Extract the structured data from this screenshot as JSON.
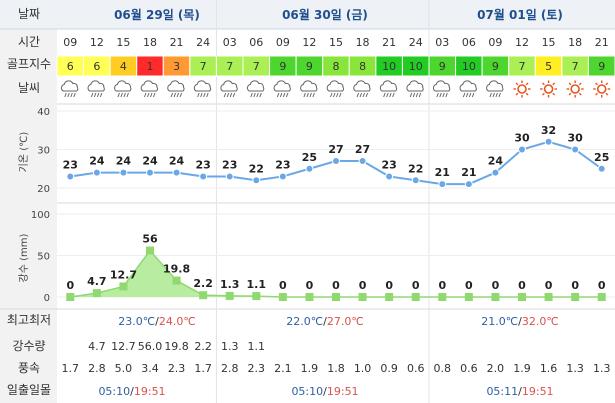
{
  "header": {
    "date_label": "날짜",
    "days": [
      "06월 29일 (목)",
      "06월 30일 (금)",
      "07월 01일 (토)"
    ]
  },
  "rows": {
    "time_label": "시간",
    "golf_label": "골프지수",
    "weather_label": "날씨",
    "minmax_label": "최고최저",
    "precip_label": "강수량",
    "wind_label": "풍속",
    "sun_label": "일출일몰"
  },
  "times": [
    "09",
    "12",
    "15",
    "18",
    "21",
    "24",
    "03",
    "06",
    "09",
    "12",
    "15",
    "18",
    "21",
    "24",
    "03",
    "06",
    "09",
    "12",
    "15",
    "18",
    "21"
  ],
  "golf_index": [
    6,
    6,
    4,
    1,
    3,
    7,
    7,
    7,
    9,
    9,
    8,
    8,
    10,
    10,
    9,
    10,
    9,
    7,
    5,
    7,
    9
  ],
  "golf_colors": {
    "1": "#ff2a2a",
    "3": "#ff9933",
    "4": "#ffcc22",
    "5": "#ffee22",
    "6": "#ffff55",
    "7": "#aaf055",
    "8": "#88e63a",
    "9": "#4dd62e",
    "10": "#22cc22"
  },
  "weather_icons": [
    "cloud-rain-icon",
    "cloud-rain-icon",
    "cloud-rain-icon",
    "cloud-rain-icon",
    "cloud-rain-icon",
    "cloud-rain-icon",
    "cloud-rain-icon",
    "cloud-rain-icon",
    "cloud-rain-icon",
    "cloud-rain-icon",
    "cloud-rain-icon",
    "cloud-rain-icon",
    "cloud-rain-icon",
    "cloud-rain-icon",
    "cloud-rain-icon",
    "cloud-rain-icon",
    "cloud-rain-icon",
    "sun-icon",
    "sun-icon",
    "sun-icon",
    "sun-icon"
  ],
  "chart_data": [
    {
      "type": "line",
      "ylabel": "기온 (℃)",
      "ylim": [
        20,
        40
      ],
      "yticks": [
        20,
        30,
        40
      ],
      "x": [
        "09",
        "12",
        "15",
        "18",
        "21",
        "24",
        "03",
        "06",
        "09",
        "12",
        "15",
        "18",
        "21",
        "24",
        "03",
        "06",
        "09",
        "12",
        "15",
        "18",
        "21"
      ],
      "values": [
        23,
        24,
        24,
        24,
        24,
        23,
        23,
        22,
        23,
        25,
        27,
        27,
        23,
        22,
        21,
        21,
        24,
        30,
        32,
        30,
        25
      ],
      "color": "#6aa7e6"
    },
    {
      "type": "area",
      "ylabel": "강수 (mm)",
      "ylim": [
        0,
        100
      ],
      "yticks": [
        0,
        50,
        100
      ],
      "x": [
        "09",
        "12",
        "15",
        "18",
        "21",
        "24",
        "03",
        "06",
        "09",
        "12",
        "15",
        "18",
        "21",
        "24",
        "03",
        "06",
        "09",
        "12",
        "15",
        "18",
        "21"
      ],
      "values": [
        0,
        4.7,
        12.7,
        56,
        19.8,
        2.2,
        1.3,
        1.1,
        0,
        0,
        0,
        0,
        0,
        0,
        0,
        0,
        0,
        0,
        0,
        0,
        0
      ],
      "value_labels": [
        "0",
        "4.7",
        "12.7",
        "56",
        "19.8",
        "2.2",
        "1.3",
        "1.1",
        "0",
        "0",
        "0",
        "0",
        "0",
        "0",
        "0",
        "0",
        "0",
        "0",
        "0",
        "0",
        "0"
      ],
      "color": "#90d870"
    }
  ],
  "minmax": [
    {
      "min": "23.0℃",
      "sep": "/",
      "max": "24.0℃"
    },
    {
      "min": "22.0℃",
      "sep": "/",
      "max": "27.0℃"
    },
    {
      "min": "21.0℃",
      "sep": "/",
      "max": "32.0℃"
    }
  ],
  "precip": [
    "",
    "4.7",
    "12.7",
    "56.0",
    "19.8",
    "2.2",
    "1.3",
    "1.1",
    "",
    "",
    "",
    "",
    "",
    "",
    "",
    "",
    "",
    "",
    "",
    "",
    ""
  ],
  "wind": [
    "1.7",
    "2.8",
    "5.0",
    "3.4",
    "2.3",
    "1.7",
    "2.8",
    "2.3",
    "2.1",
    "1.9",
    "1.8",
    "1.0",
    "0.9",
    "0.6",
    "0.8",
    "0.6",
    "2.0",
    "1.9",
    "1.6",
    "1.3",
    "1.3"
  ],
  "sun": [
    {
      "rise": "05:10",
      "sep": "/",
      "set": "19:51"
    },
    {
      "rise": "05:10",
      "sep": "/",
      "set": "19:51"
    },
    {
      "rise": "05:11",
      "sep": "/",
      "set": "19:51"
    }
  ]
}
